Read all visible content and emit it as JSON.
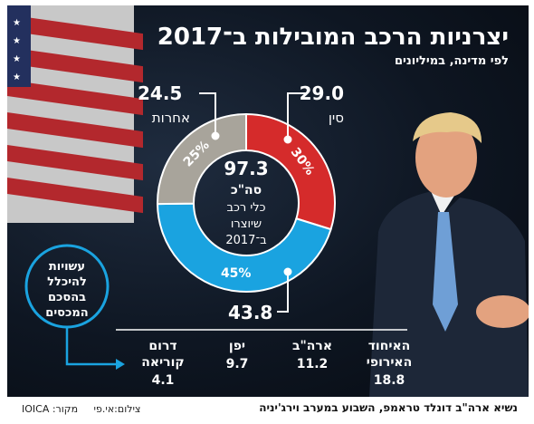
{
  "title": "יצרניות הרכב המובילות ב־2017",
  "subtitle": "לפי מדינה, במיליונים",
  "center": {
    "total": "97.3",
    "label1": "סה\"כ",
    "label2": "כלי רכב",
    "label3": "שיוצרו",
    "label4": "ב־2017"
  },
  "callout": {
    "line1": "עשויות",
    "line2": "להיכלל",
    "line3": "בהסכם",
    "line4": "המכסים"
  },
  "caption": "נשיא ארה\"ב דונלד טראמפ, השבוע במערב וירג'יניה",
  "source": "מקור: IOICA",
  "photo_credit": "צילום:אי.פי",
  "colors": {
    "china": "#d52b2b",
    "other": "#a8a49b",
    "rest": "#1aa3e0",
    "accent": "#1aa3e0"
  },
  "chart_data": {
    "type": "pie",
    "slices": [
      {
        "name": "סין",
        "value": 29.0,
        "value_label": "29.0",
        "pct_label": "30%",
        "color": "#d52b2b"
      },
      {
        "name": "",
        "value": 43.8,
        "value_label": "43.8",
        "pct_label": "45%",
        "color": "#1aa3e0"
      },
      {
        "name": "אחרות",
        "value": 24.5,
        "value_label": "24.5",
        "pct_label": "25%",
        "color": "#a8a49b"
      }
    ],
    "breakdown": [
      {
        "name1": "האיחוד",
        "name2": "האירופי",
        "value": "18.8"
      },
      {
        "name1": "ארה\"ב",
        "name2": "",
        "value": "11.2"
      },
      {
        "name1": "יפן",
        "name2": "",
        "value": "9.7"
      },
      {
        "name1": "דרום",
        "name2": "קוריאה",
        "value": "4.1"
      }
    ]
  }
}
